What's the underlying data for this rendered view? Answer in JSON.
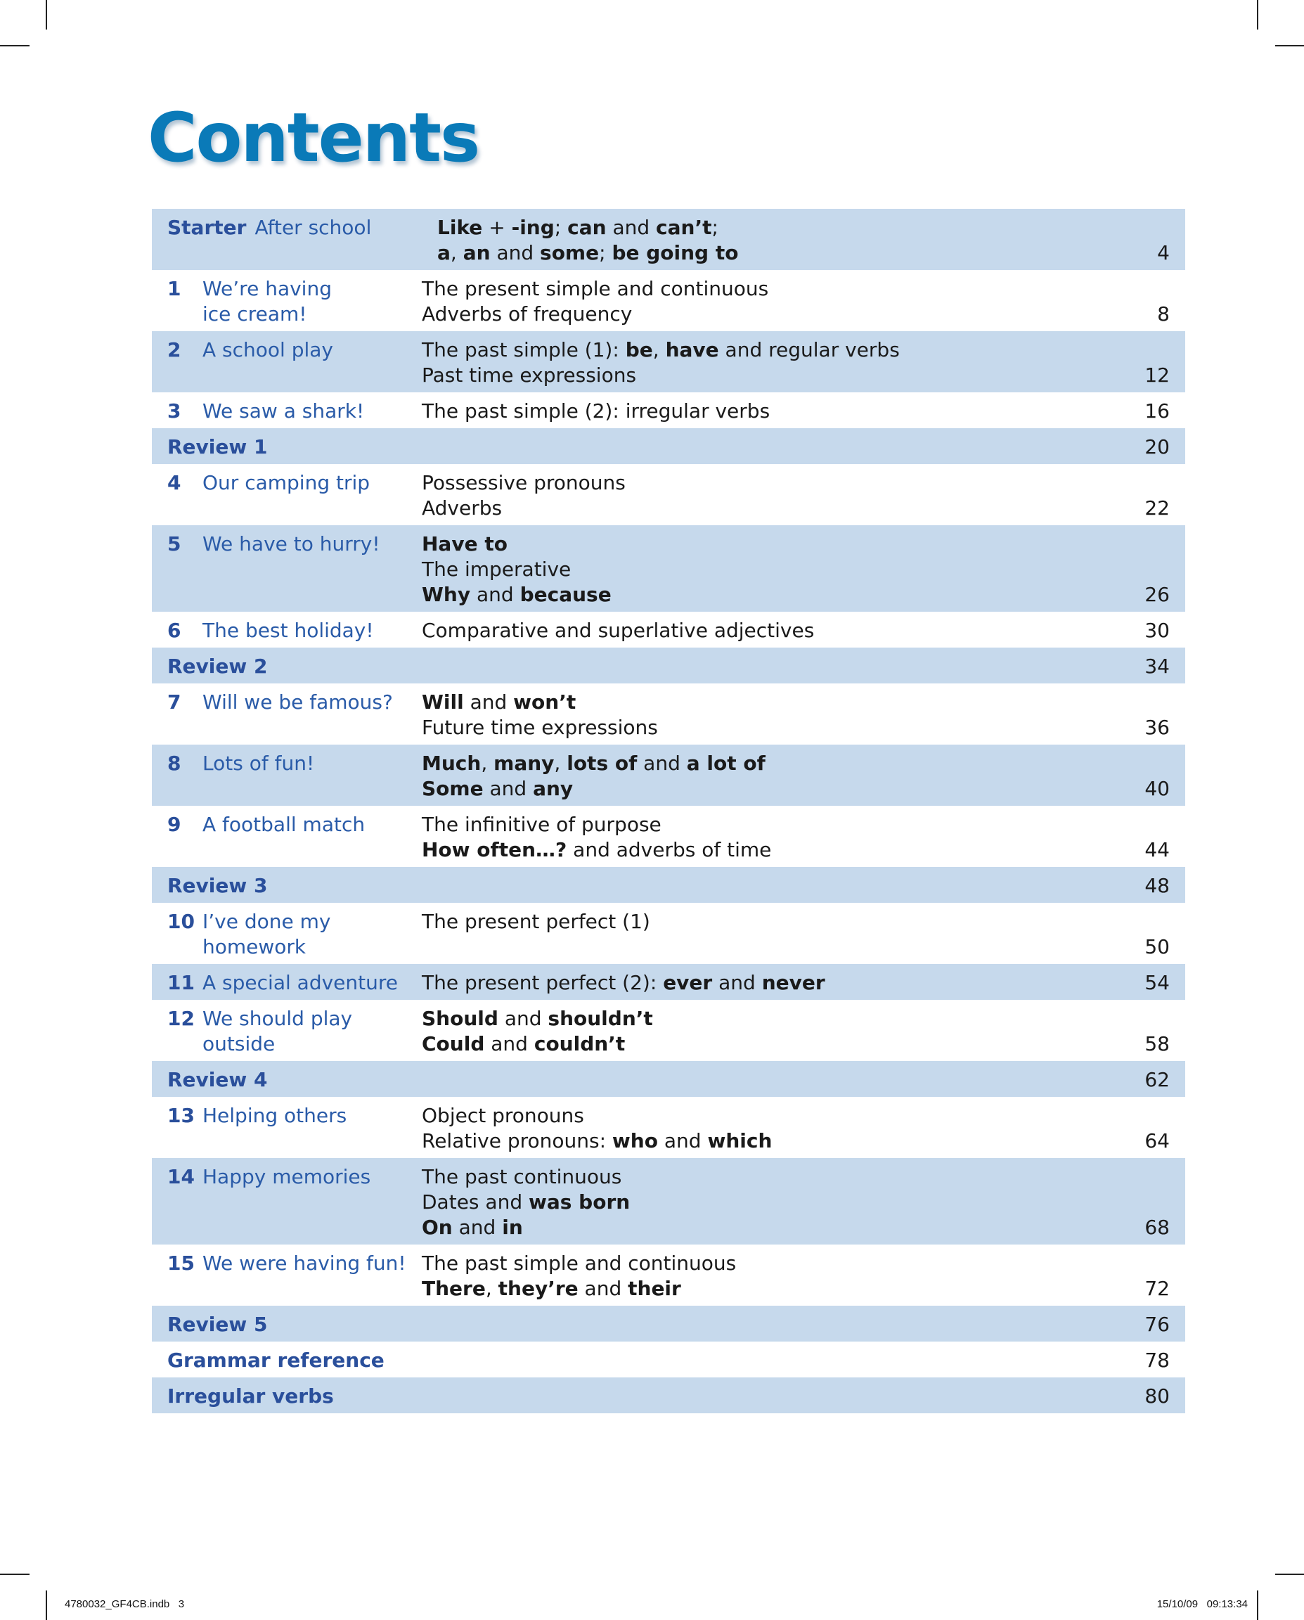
{
  "title": "Contents",
  "footer": {
    "left": "4780032_GF4CB.indb   3",
    "right": "15/10/09   09:13:34"
  },
  "colors": {
    "title": "#0a7ab8",
    "unit_text": "#2a5ba8",
    "row_shade": "#c6d9ec"
  },
  "rows": [
    {
      "kind": "starter",
      "label": "Starter",
      "title": [
        "After school"
      ],
      "topics": [
        [
          {
            "t": "Like",
            "b": true
          },
          {
            "t": " + "
          },
          {
            "t": "-ing",
            "b": true
          },
          {
            "t": "; "
          },
          {
            "t": "can",
            "b": true
          },
          {
            "t": " and "
          },
          {
            "t": "can’t",
            "b": true
          },
          {
            "t": ";"
          }
        ],
        [
          {
            "t": "a",
            "b": true
          },
          {
            "t": ", "
          },
          {
            "t": "an",
            "b": true
          },
          {
            "t": " and "
          },
          {
            "t": "some",
            "b": true
          },
          {
            "t": "; "
          },
          {
            "t": "be going to",
            "b": true
          }
        ]
      ],
      "page": "4"
    },
    {
      "kind": "unit",
      "num": "1",
      "title": [
        "We’re having",
        "ice cream!"
      ],
      "topics": [
        [
          {
            "t": "The present simple and continuous"
          }
        ],
        [
          {
            "t": "Adverbs of frequency"
          }
        ]
      ],
      "page": "8"
    },
    {
      "kind": "unit",
      "num": "2",
      "title": [
        "A school play"
      ],
      "topics": [
        [
          {
            "t": "The past simple (1): "
          },
          {
            "t": "be",
            "b": true
          },
          {
            "t": ", "
          },
          {
            "t": "have",
            "b": true
          },
          {
            "t": " and regular verbs"
          }
        ],
        [
          {
            "t": "Past time expressions"
          }
        ]
      ],
      "page": "12"
    },
    {
      "kind": "unit",
      "num": "3",
      "title": [
        "We saw a shark!"
      ],
      "topics": [
        [
          {
            "t": "The past simple (2): irregular verbs"
          }
        ]
      ],
      "page": "16"
    },
    {
      "kind": "review",
      "label": "Review 1",
      "page": "20"
    },
    {
      "kind": "unit",
      "num": "4",
      "title": [
        "Our camping trip"
      ],
      "topics": [
        [
          {
            "t": "Possessive pronouns"
          }
        ],
        [
          {
            "t": "Adverbs"
          }
        ]
      ],
      "page": "22"
    },
    {
      "kind": "unit",
      "num": "5",
      "title": [
        "We have to hurry!"
      ],
      "topics": [
        [
          {
            "t": "Have to",
            "b": true
          }
        ],
        [
          {
            "t": "The imperative"
          }
        ],
        [
          {
            "t": "Why",
            "b": true
          },
          {
            "t": " and "
          },
          {
            "t": "because",
            "b": true
          }
        ]
      ],
      "page": "26"
    },
    {
      "kind": "unit",
      "num": "6",
      "title": [
        "The best holiday!"
      ],
      "topics": [
        [
          {
            "t": "Comparative and superlative adjectives"
          }
        ]
      ],
      "page": "30"
    },
    {
      "kind": "review",
      "label": "Review 2",
      "page": "34"
    },
    {
      "kind": "unit",
      "num": "7",
      "title": [
        "Will we be famous?"
      ],
      "topics": [
        [
          {
            "t": "Will",
            "b": true
          },
          {
            "t": " and "
          },
          {
            "t": "won’t",
            "b": true
          }
        ],
        [
          {
            "t": "Future time expressions"
          }
        ]
      ],
      "page": "36"
    },
    {
      "kind": "unit",
      "num": "8",
      "title": [
        "Lots of fun!"
      ],
      "topics": [
        [
          {
            "t": "Much",
            "b": true
          },
          {
            "t": ", "
          },
          {
            "t": "many",
            "b": true
          },
          {
            "t": ", "
          },
          {
            "t": "lots of",
            "b": true
          },
          {
            "t": " and "
          },
          {
            "t": "a lot of",
            "b": true
          }
        ],
        [
          {
            "t": "Some",
            "b": true
          },
          {
            "t": " and "
          },
          {
            "t": "any",
            "b": true
          }
        ]
      ],
      "page": "40"
    },
    {
      "kind": "unit",
      "num": "9",
      "title": [
        "A football match"
      ],
      "topics": [
        [
          {
            "t": "The infinitive of purpose"
          }
        ],
        [
          {
            "t": "How often…?",
            "b": true
          },
          {
            "t": " and adverbs of time"
          }
        ]
      ],
      "page": "44"
    },
    {
      "kind": "review",
      "label": "Review 3",
      "page": "48"
    },
    {
      "kind": "unit",
      "num": "10",
      "title": [
        "I’ve done my",
        "homework"
      ],
      "topics": [
        [
          {
            "t": "The present perfect (1)"
          }
        ]
      ],
      "page": "50"
    },
    {
      "kind": "unit",
      "num": "11",
      "title": [
        "A special adventure"
      ],
      "topics": [
        [
          {
            "t": "The present perfect (2): "
          },
          {
            "t": "ever",
            "b": true
          },
          {
            "t": " and "
          },
          {
            "t": "never",
            "b": true
          }
        ]
      ],
      "page": "54"
    },
    {
      "kind": "unit",
      "num": "12",
      "title": [
        "We should play",
        "outside"
      ],
      "topics": [
        [
          {
            "t": "Should",
            "b": true
          },
          {
            "t": " and "
          },
          {
            "t": "shouldn’t",
            "b": true
          }
        ],
        [
          {
            "t": "Could",
            "b": true
          },
          {
            "t": " and "
          },
          {
            "t": "couldn’t",
            "b": true
          }
        ]
      ],
      "page": "58"
    },
    {
      "kind": "review",
      "label": "Review 4",
      "page": "62"
    },
    {
      "kind": "unit",
      "num": "13",
      "title": [
        "Helping others"
      ],
      "topics": [
        [
          {
            "t": "Object pronouns"
          }
        ],
        [
          {
            "t": "Relative pronouns: "
          },
          {
            "t": "who",
            "b": true
          },
          {
            "t": " and "
          },
          {
            "t": "which",
            "b": true
          }
        ]
      ],
      "page": "64"
    },
    {
      "kind": "unit",
      "num": "14",
      "title": [
        "Happy memories"
      ],
      "topics": [
        [
          {
            "t": "The past continuous"
          }
        ],
        [
          {
            "t": "Dates and "
          },
          {
            "t": "was born",
            "b": true
          }
        ],
        [
          {
            "t": "On",
            "b": true
          },
          {
            "t": " and "
          },
          {
            "t": "in",
            "b": true
          }
        ]
      ],
      "page": "68"
    },
    {
      "kind": "unit",
      "num": "15",
      "title": [
        "We were having fun!"
      ],
      "topics": [
        [
          {
            "t": "The past simple and continuous"
          }
        ],
        [
          {
            "t": "There",
            "b": true
          },
          {
            "t": ", "
          },
          {
            "t": "they’re",
            "b": true
          },
          {
            "t": " and "
          },
          {
            "t": "their",
            "b": true
          }
        ]
      ],
      "page": "72"
    },
    {
      "kind": "review",
      "label": "Review 5",
      "page": "76"
    },
    {
      "kind": "review",
      "label": "Grammar reference",
      "page": "78"
    },
    {
      "kind": "review",
      "label": "Irregular verbs",
      "page": "80"
    }
  ]
}
